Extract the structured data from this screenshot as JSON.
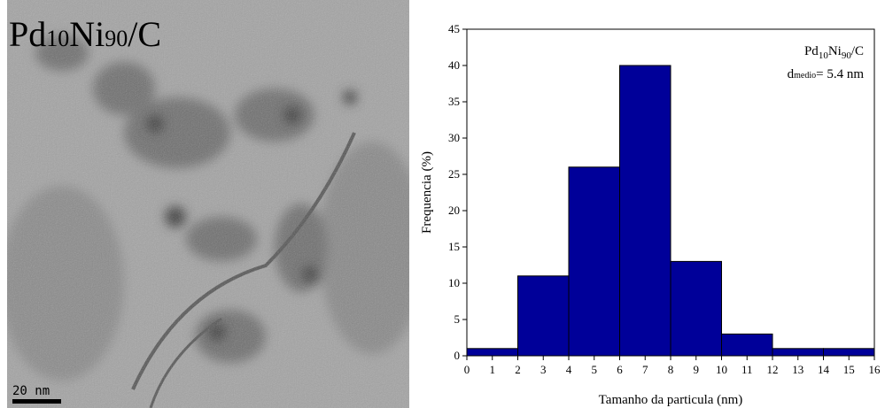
{
  "image": {
    "label_parts": [
      "Pd",
      "10",
      "Ni",
      "90",
      "/C"
    ],
    "scale_bar": "20 nm"
  },
  "chart_data": {
    "type": "histogram",
    "bins": [
      0,
      2,
      4,
      6,
      8,
      10,
      12,
      14,
      16
    ],
    "values": [
      1,
      11,
      26,
      40,
      13,
      3,
      1,
      1
    ],
    "color": "#000099",
    "xlim": [
      0,
      16
    ],
    "xticks": [
      0,
      1,
      2,
      3,
      4,
      5,
      6,
      7,
      8,
      9,
      10,
      11,
      12,
      13,
      14,
      15,
      16
    ],
    "ylim": [
      0,
      45
    ],
    "yticks": [
      0,
      5,
      10,
      15,
      20,
      25,
      30,
      35,
      40,
      45
    ],
    "xlabel": "Tamanho da particula (nm)",
    "ylabel": "Frequencia (%)",
    "annotation": {
      "formula": [
        "Pd",
        "10",
        "Ni",
        "90",
        "/C"
      ],
      "mean": [
        "d",
        "medio",
        "= 5.4 nm"
      ]
    }
  }
}
